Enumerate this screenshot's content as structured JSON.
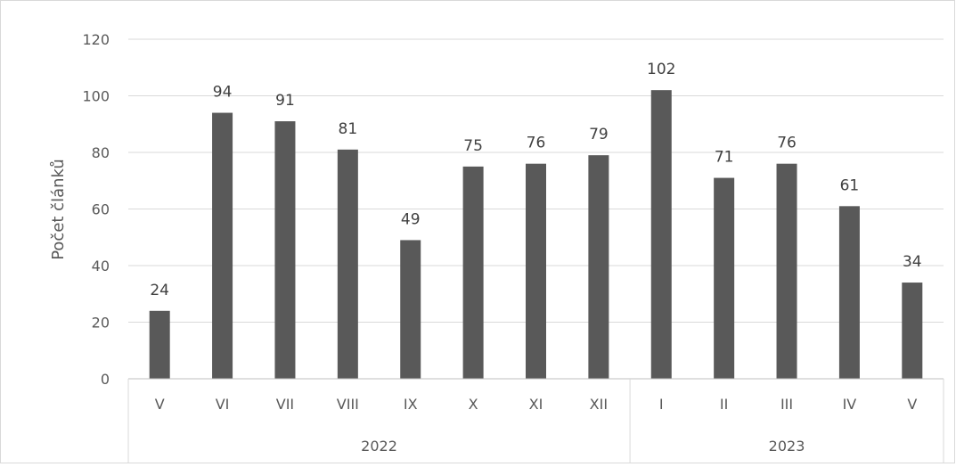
{
  "chart_data": {
    "type": "bar",
    "ylabel": "Počet článků",
    "ylim": [
      0,
      120
    ],
    "yticks": [
      "0",
      "20",
      "40",
      "60",
      "80",
      "100",
      "120"
    ],
    "categories": [
      "V",
      "VI",
      "VII",
      "VIII",
      "IX",
      "X",
      "XI",
      "XII",
      "I",
      "II",
      "III",
      "IV",
      "V"
    ],
    "values": [
      24,
      94,
      91,
      81,
      49,
      75,
      76,
      79,
      102,
      71,
      76,
      61,
      34
    ],
    "groups": [
      {
        "label": "2022",
        "count": 8
      },
      {
        "label": "2023",
        "count": 5
      }
    ],
    "bar_color": "#595959",
    "grid": true,
    "legend": "none"
  }
}
